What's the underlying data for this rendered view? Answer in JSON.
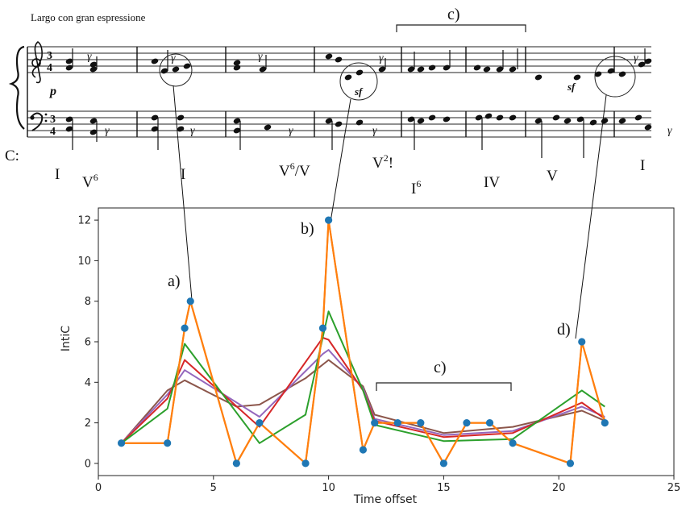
{
  "score": {
    "tempo": "Largo con gran espressione",
    "key_label": "C:",
    "dynamics": [
      "p",
      "sf",
      "sf"
    ],
    "top_bracket_label": "c)",
    "roman_numerals": [
      {
        "base": "I",
        "sup": ""
      },
      {
        "base": "V",
        "sup": "6"
      },
      {
        "base": "I",
        "sup": ""
      },
      {
        "base": "V",
        "sup": "6",
        "suffix": "/V"
      },
      {
        "base": "V",
        "sup": "2",
        "suffix": "!"
      },
      {
        "base": "I",
        "sup": "6"
      },
      {
        "base": "IV",
        "sup": ""
      },
      {
        "base": "V",
        "sup": ""
      },
      {
        "base": "I",
        "sup": ""
      }
    ]
  },
  "chart_data": {
    "type": "line",
    "xlabel": "Time offset",
    "ylabel": "IntiC",
    "xlim": [
      0,
      25
    ],
    "ylim": [
      -0.6,
      12.6
    ],
    "xticks": [
      0,
      5,
      10,
      15,
      20,
      25
    ],
    "yticks": [
      0,
      2,
      4,
      6,
      8,
      10,
      12
    ],
    "grid": false,
    "annotations": {
      "a": "a)",
      "b": "b)",
      "c": "c)",
      "d": "d)"
    },
    "points": {
      "x": [
        1,
        3,
        3.75,
        4,
        6,
        7,
        9,
        9.75,
        10,
        11.5,
        12,
        13,
        14,
        15,
        16,
        17,
        18,
        20.5,
        21,
        22
      ],
      "y": [
        1,
        1,
        6.67,
        8,
        0,
        2,
        0,
        6.67,
        12,
        0.67,
        2,
        2,
        2,
        0,
        2,
        2,
        1,
        0,
        6,
        2
      ]
    },
    "series": [
      {
        "color": "#ff7f0e",
        "x": [
          1,
          3,
          3.75,
          4,
          6,
          7,
          9,
          9.75,
          10,
          11.5,
          12,
          13,
          14,
          15,
          16,
          17,
          18,
          20.5,
          21,
          22
        ],
        "y": [
          1,
          1,
          6.67,
          8,
          0,
          2,
          0,
          6.67,
          12,
          0.67,
          2,
          2,
          2,
          0,
          2,
          2,
          1,
          0,
          6,
          2
        ]
      },
      {
        "color": "#2ca02c",
        "x": [
          1,
          3,
          3.75,
          7,
          9,
          10,
          11.5,
          12,
          15,
          18,
          21,
          22
        ],
        "y": [
          1,
          2.7,
          5.9,
          1,
          2.4,
          7.5,
          3.6,
          1.9,
          1.1,
          1.2,
          3.6,
          2.8
        ]
      },
      {
        "color": "#d62728",
        "x": [
          1,
          3,
          3.75,
          7,
          9.75,
          10,
          11.5,
          12,
          15,
          18,
          21,
          22
        ],
        "y": [
          1,
          3.2,
          5.1,
          1.8,
          6.2,
          6.1,
          3.6,
          2.1,
          1.3,
          1.5,
          3.0,
          2.2
        ]
      },
      {
        "color": "#9467bd",
        "x": [
          1,
          3,
          3.75,
          7,
          9.75,
          10,
          11.5,
          12,
          15,
          18,
          21,
          22
        ],
        "y": [
          1,
          3.4,
          4.6,
          2.3,
          5.4,
          5.6,
          3.7,
          2.2,
          1.4,
          1.6,
          2.8,
          2.3
        ]
      },
      {
        "color": "#8c564b",
        "x": [
          1,
          3,
          3.75,
          6,
          7,
          9,
          10,
          11.5,
          12,
          15,
          18,
          21,
          22
        ],
        "y": [
          1,
          3.6,
          4.1,
          2.8,
          2.9,
          4.2,
          5.1,
          3.8,
          2.4,
          1.5,
          1.8,
          2.6,
          2.1
        ]
      }
    ]
  }
}
